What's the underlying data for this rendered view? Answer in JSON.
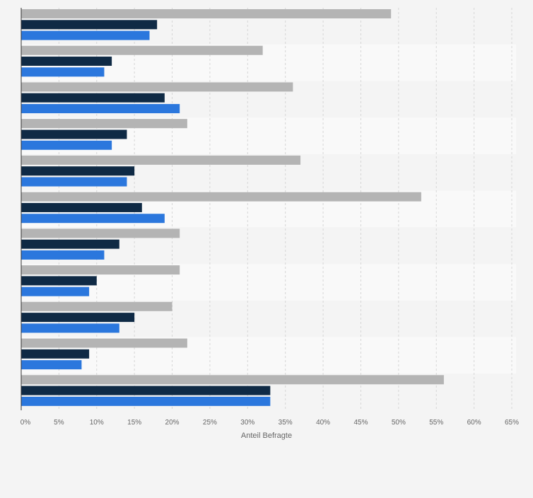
{
  "chart_data": {
    "type": "bar",
    "orientation": "horizontal",
    "categories": [
      "",
      "",
      "",
      "",
      "",
      "",
      "",
      "",
      "",
      "",
      ""
    ],
    "series": [
      {
        "color": "#b4b4b4",
        "values": [
          49,
          32,
          36,
          22,
          37,
          53,
          21,
          21,
          20,
          22,
          56
        ]
      },
      {
        "color": "#0f2a45",
        "values": [
          18,
          12,
          19,
          14,
          15,
          16,
          13,
          10,
          15,
          9,
          33
        ]
      },
      {
        "color": "#2b77dd",
        "values": [
          17,
          11,
          21,
          12,
          14,
          19,
          11,
          9,
          13,
          8,
          33
        ]
      }
    ],
    "xlabel": "Anteil Befragte",
    "xlim": [
      0,
      65
    ],
    "xticks": [
      "0%",
      "5%",
      "10%",
      "15%",
      "20%",
      "25%",
      "30%",
      "35%",
      "40%",
      "45%",
      "50%",
      "55%",
      "60%",
      "65%"
    ],
    "grid": true
  }
}
